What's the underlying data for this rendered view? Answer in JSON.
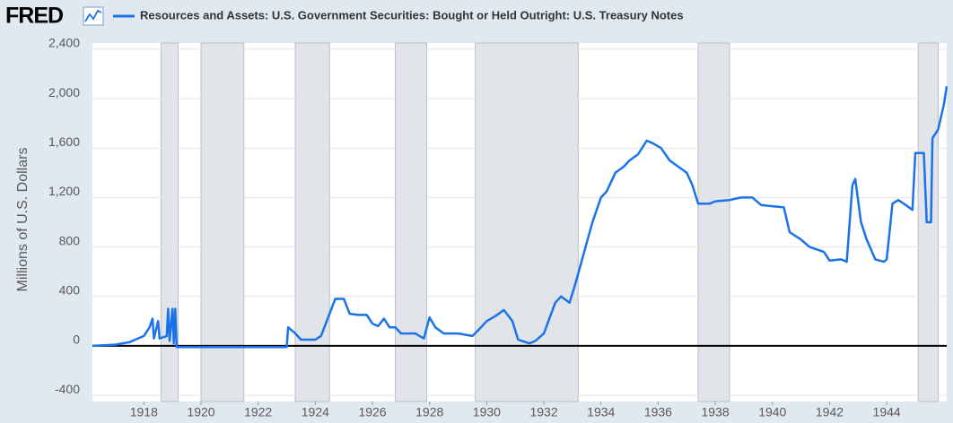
{
  "logo": "FRED",
  "chart_data": {
    "type": "line",
    "y_label": "Millions of U.S. Dollars",
    "x": [
      1916.2,
      1917.0,
      1917.5,
      1917.7,
      1918.0,
      1918.2,
      1918.3,
      1918.35,
      1918.5,
      1918.55,
      1918.8,
      1918.85,
      1918.9,
      1919.0,
      1919.05,
      1919.1,
      1919.15,
      1920.0,
      1923.0,
      1923.05,
      1923.3,
      1923.5,
      1924.0,
      1924.2,
      1924.4,
      1924.7,
      1925.0,
      1925.2,
      1925.5,
      1925.8,
      1926.0,
      1926.2,
      1926.4,
      1926.6,
      1926.8,
      1927.0,
      1927.5,
      1927.8,
      1928.0,
      1928.2,
      1928.5,
      1929.0,
      1929.5,
      1929.8,
      1930.0,
      1930.3,
      1930.6,
      1930.9,
      1931.1,
      1931.5,
      1931.7,
      1932.0,
      1932.4,
      1932.6,
      1932.9,
      1933.1,
      1933.4,
      1933.7,
      1934.0,
      1934.2,
      1934.5,
      1934.8,
      1935.0,
      1935.3,
      1935.6,
      1935.8,
      1936.1,
      1936.4,
      1936.7,
      1937.0,
      1937.2,
      1937.4,
      1937.8,
      1938.0,
      1938.5,
      1938.9,
      1939.3,
      1939.6,
      1940.0,
      1940.4,
      1940.6,
      1941.0,
      1941.3,
      1941.8,
      1942.0,
      1942.4,
      1942.6,
      1942.8,
      1942.9,
      1943.1,
      1943.3,
      1943.6,
      1943.9,
      1944.0,
      1944.1,
      1944.2,
      1944.4,
      1944.6,
      1944.9,
      1945.0,
      1945.3,
      1945.4,
      1945.55,
      1945.6,
      1945.8,
      1946.0,
      1946.1
    ],
    "series": [
      {
        "name": "Resources and Assets: U.S. Government Securities: Bought or Held Outright: U.S. Treasury Notes",
        "color": "#1a73e8",
        "values": [
          0,
          10,
          30,
          50,
          80,
          150,
          220,
          60,
          200,
          60,
          80,
          300,
          40,
          300,
          20,
          300,
          -10,
          -10,
          -10,
          150,
          100,
          50,
          50,
          80,
          200,
          380,
          380,
          260,
          250,
          250,
          180,
          160,
          220,
          150,
          150,
          100,
          100,
          60,
          230,
          150,
          100,
          100,
          80,
          150,
          200,
          240,
          290,
          200,
          50,
          20,
          40,
          100,
          350,
          400,
          350,
          500,
          750,
          1000,
          1200,
          1250,
          1400,
          1450,
          1500,
          1550,
          1660,
          1640,
          1600,
          1500,
          1450,
          1400,
          1300,
          1150,
          1150,
          1170,
          1180,
          1200,
          1200,
          1140,
          1130,
          1120,
          920,
          860,
          800,
          760,
          690,
          700,
          680,
          1300,
          1350,
          1000,
          860,
          700,
          680,
          700,
          920,
          1150,
          1180,
          1150,
          1100,
          1560,
          1560,
          1000,
          1000,
          1680,
          1750,
          1950,
          2100
        ]
      }
    ],
    "recessions": [
      [
        1918.6,
        1919.2
      ],
      [
        1920.0,
        1921.5
      ],
      [
        1923.3,
        1924.5
      ],
      [
        1926.8,
        1927.9
      ],
      [
        1929.6,
        1933.2
      ],
      [
        1937.4,
        1938.5
      ],
      [
        1945.1,
        1945.8
      ]
    ],
    "xlim": [
      1916.2,
      1946.1
    ],
    "xticks": [
      1918,
      1920,
      1922,
      1924,
      1926,
      1928,
      1930,
      1932,
      1934,
      1936,
      1938,
      1940,
      1942,
      1944
    ],
    "ylim": [
      -450,
      2450
    ],
    "yticks": [
      {
        "value": 2400,
        "label": "2,400"
      },
      {
        "value": 2000,
        "label": "2,000"
      },
      {
        "value": 1600,
        "label": "1,600"
      },
      {
        "value": 1200,
        "label": "1,200"
      },
      800,
      400,
      0,
      -400
    ],
    "grid": true
  }
}
